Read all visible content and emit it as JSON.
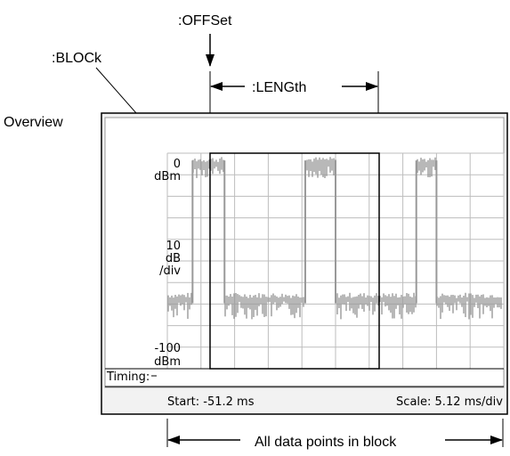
{
  "callouts": {
    "offset": ":OFFSet",
    "block": ":BLOCk",
    "length": ":LENGth",
    "overview": "Overview",
    "all_points": "All data points in block"
  },
  "screen": {
    "y_top_value": "0",
    "y_top_unit": "dBm",
    "y_scale_value": "10",
    "y_scale_unit": "dB",
    "y_scale_per": "/div",
    "y_bottom_value": "-100",
    "y_bottom_unit": "dBm",
    "timing_label": "Timing:",
    "start_text": "Start: -51.2 ms",
    "scale_text": "Scale: 5.12 ms/div"
  },
  "trace": {
    "high_level_dbm": -5,
    "low_level_dbm": -68,
    "pulse_high_divisions": [
      [
        0.75,
        1.7
      ],
      [
        4.1,
        5.0
      ],
      [
        7.4,
        8.0
      ]
    ]
  },
  "colors": {
    "trace": "#999999",
    "grid": "#bdbdbd",
    "frame": "#000000"
  }
}
